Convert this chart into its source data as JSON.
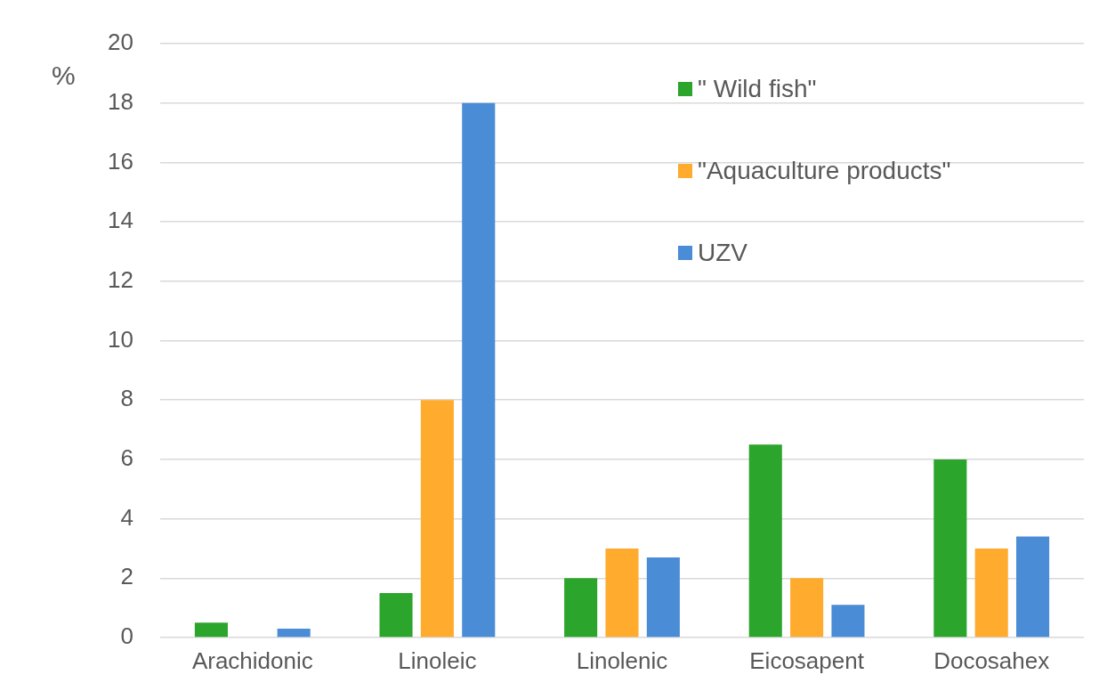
{
  "chart_data": {
    "type": "bar",
    "ylabel": "%",
    "categories": [
      "Arachidonic",
      "Linoleic",
      "Linolenic",
      "Eicosapent",
      "Docosahex"
    ],
    "series": [
      {
        "name": "\" Wild fish\"",
        "color": "#2ca52c",
        "values": [
          0.5,
          1.5,
          2,
          6.5,
          6
        ]
      },
      {
        "name": "\"Aquaculture products\"",
        "color": "#ffab2e",
        "values": [
          0,
          8,
          3,
          2,
          3
        ]
      },
      {
        "name": "UZV",
        "color": "#4a8cd6",
        "values": [
          0.3,
          18,
          2.7,
          1.1,
          3.4
        ]
      }
    ],
    "ylim": [
      0,
      20
    ],
    "yticks": [
      0,
      2,
      4,
      6,
      8,
      10,
      12,
      14,
      16,
      18,
      20
    ],
    "grid": "y",
    "legend": "top right"
  }
}
